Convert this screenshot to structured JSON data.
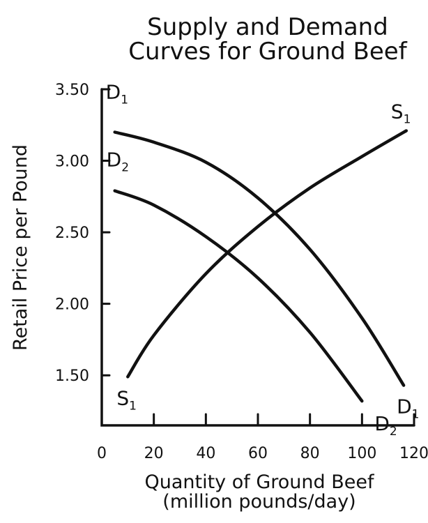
{
  "chart_data": {
    "type": "line",
    "title": [
      "Supply and Demand",
      "Curves for Ground Beef"
    ],
    "xlabel": [
      "Quantity of Ground Beef",
      "(million pounds/day)"
    ],
    "ylabel": "Retail Price per Pound",
    "xlim": [
      0,
      120
    ],
    "ylim": [
      1.15,
      3.5
    ],
    "x_ticks": [
      0,
      20,
      40,
      60,
      80,
      100,
      120
    ],
    "x_tick_labels": [
      "0",
      "20",
      "40",
      "60",
      "80",
      "100",
      "120"
    ],
    "y_ticks": [
      1.5,
      2.0,
      2.5,
      3.0,
      3.5
    ],
    "y_tick_labels": [
      "1.50",
      "2.00",
      "2.50",
      "3.00",
      "3.50"
    ],
    "grid": false,
    "legend": "none",
    "series": [
      {
        "id": "d1",
        "label": "D",
        "label_sub": "1",
        "points": [
          [
            5,
            3.2
          ],
          [
            20,
            3.13
          ],
          [
            40,
            2.99
          ],
          [
            60,
            2.74
          ],
          [
            80,
            2.38
          ],
          [
            100,
            1.9
          ],
          [
            116,
            1.43
          ]
        ]
      },
      {
        "id": "d2",
        "label": "D",
        "label_sub": "2",
        "points": [
          [
            5,
            2.79
          ],
          [
            20,
            2.69
          ],
          [
            40,
            2.47
          ],
          [
            60,
            2.18
          ],
          [
            80,
            1.8
          ],
          [
            100,
            1.32
          ]
        ]
      },
      {
        "id": "s1",
        "label": "S",
        "label_sub": "1",
        "points": [
          [
            10,
            1.49
          ],
          [
            20,
            1.78
          ],
          [
            40,
            2.21
          ],
          [
            60,
            2.54
          ],
          [
            80,
            2.81
          ],
          [
            100,
            3.03
          ],
          [
            117,
            3.21
          ]
        ]
      }
    ]
  }
}
